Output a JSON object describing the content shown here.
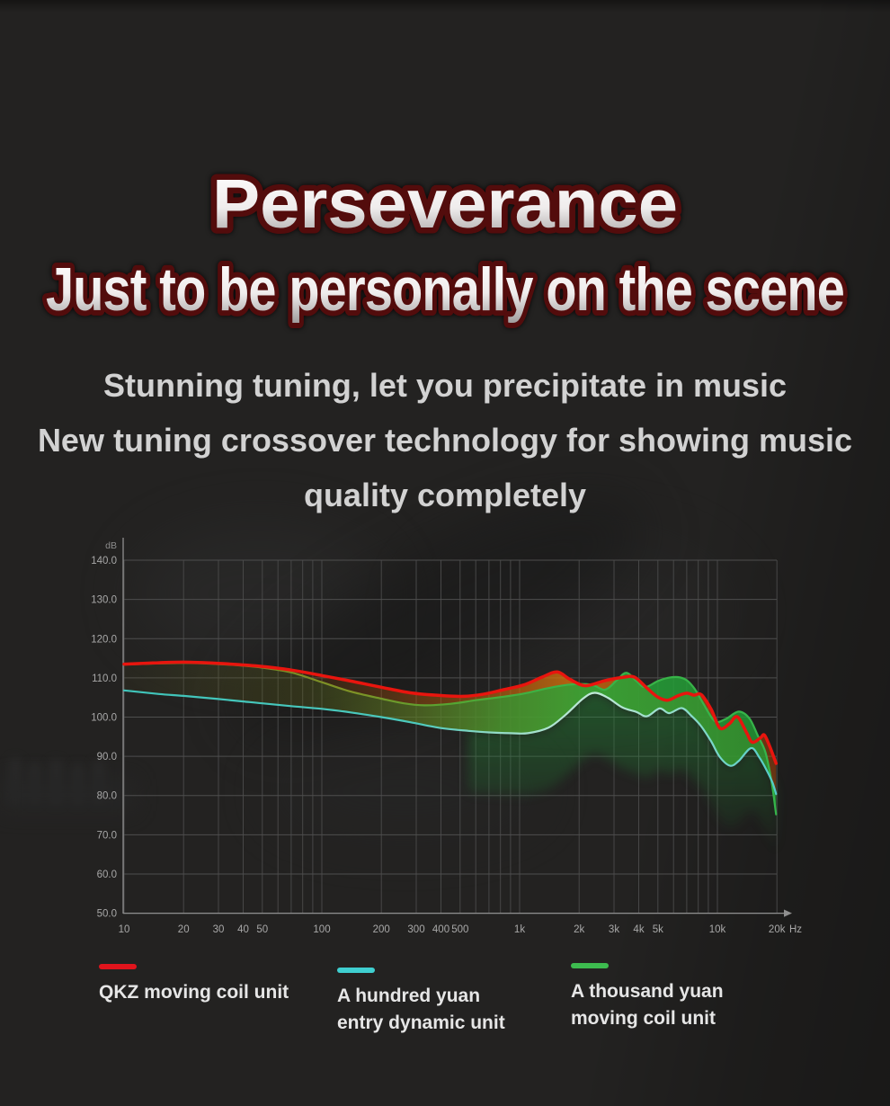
{
  "page": {
    "background": "#232221"
  },
  "hero": {
    "title": "Perseverance",
    "subtitle": "Just to be personally on the scene",
    "title_fill_top": "#ffffff",
    "title_fill_bottom": "#9e9b9b",
    "title_outline_color": "#530c0c",
    "body_lines": [
      "Stunning tuning, let you precipitate in music",
      "New tuning crossover technology for showing music",
      "quality completely"
    ],
    "body_text_color": "#d2d2d2"
  },
  "chart_data": {
    "type": "line",
    "title": "",
    "x_axis": {
      "scale": "log",
      "min": 10,
      "max": 20000,
      "unit_label": "Hz",
      "tick_values": [
        10,
        20,
        30,
        40,
        50,
        100,
        200,
        300,
        400,
        500,
        1000,
        2000,
        3000,
        4000,
        5000,
        10000,
        20000
      ],
      "tick_labels": [
        "10",
        "20",
        "30",
        "40",
        "50",
        "100",
        "200",
        "300",
        "400",
        "500",
        "1k",
        "2k",
        "3k",
        "4k",
        "5k",
        "10k",
        "20k"
      ]
    },
    "y_axis": {
      "unit_label": "dB",
      "min": 50,
      "max": 140,
      "tick_values": [
        140,
        130,
        120,
        110,
        100,
        90,
        80,
        70,
        60,
        50
      ],
      "tick_labels": [
        "140.0",
        "130.0",
        "120.0",
        "110.0",
        "100.0",
        "90.0",
        "80.0",
        "70.0",
        "60.0",
        "50.0"
      ]
    },
    "grid": true,
    "grid_color": "#474747",
    "axis_color": "#8f8f8f",
    "series": [
      {
        "name": "QKZ moving coil unit",
        "color": "#e8150e",
        "points": [
          [
            10,
            113.5
          ],
          [
            14,
            113.8
          ],
          [
            20,
            114
          ],
          [
            30,
            113.7
          ],
          [
            40,
            113.3
          ],
          [
            50,
            112.9
          ],
          [
            70,
            112
          ],
          [
            100,
            110.6
          ],
          [
            140,
            109.2
          ],
          [
            200,
            107.6
          ],
          [
            280,
            106.2
          ],
          [
            400,
            105.5
          ],
          [
            520,
            105.3
          ],
          [
            650,
            105.8
          ],
          [
            830,
            107
          ],
          [
            1050,
            108.2
          ],
          [
            1300,
            110.2
          ],
          [
            1550,
            111.5
          ],
          [
            1800,
            109.6
          ],
          [
            2150,
            108
          ],
          [
            2700,
            109.3
          ],
          [
            3300,
            110.1
          ],
          [
            3800,
            110.2
          ],
          [
            4400,
            107.4
          ],
          [
            5000,
            105.1
          ],
          [
            5600,
            104.3
          ],
          [
            6300,
            105.4
          ],
          [
            7000,
            106.1
          ],
          [
            7600,
            105.6
          ],
          [
            8300,
            105.7
          ],
          [
            9300,
            102
          ],
          [
            10300,
            97.2
          ],
          [
            11500,
            98.3
          ],
          [
            12600,
            100.1
          ],
          [
            14000,
            96.2
          ],
          [
            15000,
            93.6
          ],
          [
            16500,
            94.7
          ],
          [
            17300,
            95.4
          ],
          [
            18500,
            92.2
          ],
          [
            19800,
            88.2
          ]
        ]
      },
      {
        "name": "A hundred yuan entry dynamic unit",
        "color": "#45cbc0",
        "points": [
          [
            10,
            106.8
          ],
          [
            15,
            105.9
          ],
          [
            20,
            105.4
          ],
          [
            30,
            104.6
          ],
          [
            40,
            104
          ],
          [
            50,
            103.5
          ],
          [
            70,
            102.8
          ],
          [
            100,
            102.1
          ],
          [
            140,
            101.2
          ],
          [
            200,
            100
          ],
          [
            280,
            98.7
          ],
          [
            400,
            97.2
          ],
          [
            550,
            96.5
          ],
          [
            700,
            96.1
          ],
          [
            900,
            95.9
          ],
          [
            1100,
            95.9
          ],
          [
            1400,
            97.3
          ],
          [
            1700,
            100.5
          ],
          [
            2100,
            104.8
          ],
          [
            2400,
            106.2
          ],
          [
            2800,
            104.9
          ],
          [
            3300,
            102.5
          ],
          [
            3900,
            101.3
          ],
          [
            4400,
            100.2
          ],
          [
            5100,
            102.2
          ],
          [
            5700,
            101
          ],
          [
            6600,
            102.3
          ],
          [
            7400,
            100.3
          ],
          [
            8300,
            97.6
          ],
          [
            9300,
            93.8
          ],
          [
            10300,
            89.8
          ],
          [
            11600,
            87.6
          ],
          [
            12800,
            88.8
          ],
          [
            14800,
            92.1
          ],
          [
            16300,
            89.7
          ],
          [
            17800,
            86.3
          ],
          [
            19000,
            83.3
          ],
          [
            19800,
            80.4
          ]
        ]
      },
      {
        "name": "A thousand yuan moving coil unit",
        "color": "#35b44a",
        "points": [
          [
            10,
            113.4
          ],
          [
            20,
            113.8
          ],
          [
            30,
            113.5
          ],
          [
            40,
            113.1
          ],
          [
            50,
            112.6
          ],
          [
            70,
            111.4
          ],
          [
            100,
            108.9
          ],
          [
            140,
            106.5
          ],
          [
            200,
            104.7
          ],
          [
            260,
            103.5
          ],
          [
            330,
            103
          ],
          [
            450,
            103.4
          ],
          [
            600,
            104.3
          ],
          [
            830,
            105.2
          ],
          [
            1050,
            106
          ],
          [
            1400,
            107.4
          ],
          [
            1800,
            108.3
          ],
          [
            2300,
            108.3
          ],
          [
            2700,
            107
          ],
          [
            3100,
            109.4
          ],
          [
            3460,
            111.3
          ],
          [
            3900,
            109.2
          ],
          [
            4300,
            107.6
          ],
          [
            5000,
            109.2
          ],
          [
            5600,
            110
          ],
          [
            6300,
            110.2
          ],
          [
            7000,
            109.4
          ],
          [
            7700,
            107.1
          ],
          [
            8500,
            103.4
          ],
          [
            9700,
            99
          ],
          [
            11000,
            99.5
          ],
          [
            12800,
            101.4
          ],
          [
            14500,
            99.7
          ],
          [
            16000,
            95.3
          ],
          [
            17500,
            91
          ],
          [
            18800,
            83.5
          ],
          [
            19800,
            75.2
          ]
        ]
      }
    ],
    "legend": [
      {
        "label_lines": [
          "QKZ moving coil unit"
        ],
        "color": "#e0141c"
      },
      {
        "label_lines": [
          "A hundred yuan",
          "entry dynamic unit"
        ],
        "color": "#3fcfd0"
      },
      {
        "label_lines": [
          "A thousand yuan",
          "moving coil unit"
        ],
        "color": "#3dbb4f"
      }
    ],
    "legend_position": "bottom"
  }
}
